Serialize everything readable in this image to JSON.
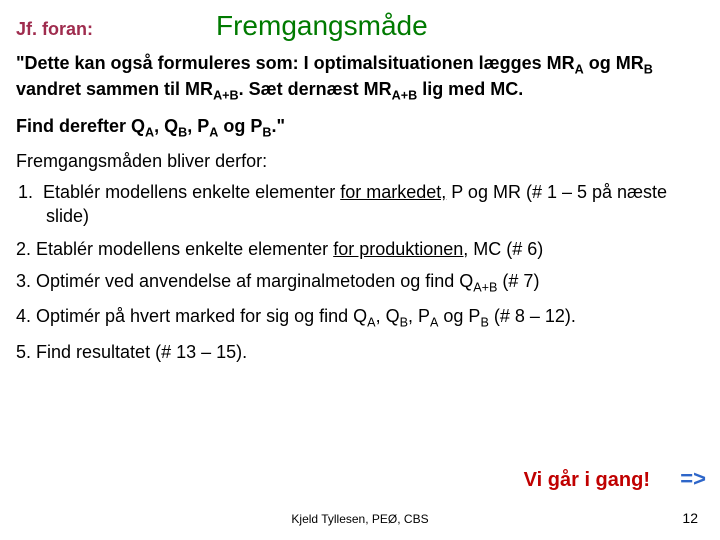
{
  "header": {
    "jf": "Jf. foran:",
    "title": "Fremgangsmåde"
  },
  "p1": {
    "pre": "\"Dette kan også formuleres som: I optimalsituationen lægges MR",
    "subA": "A",
    "mid1": " og MR",
    "subB": "B",
    "mid2": " vandret sammen til MR",
    "subAB1": "A+B",
    "mid3": ". Sæt dernæst MR",
    "subAB2": "A+B",
    "mid4": " lig med MC."
  },
  "p2": {
    "pre": "Find derefter Q",
    "sA": "A",
    "c1": ", Q",
    "sB": "B",
    "c2": ", P",
    "sA2": "A",
    "c3": " og P",
    "sB2": "B",
    "c4": ".\""
  },
  "p3": "Fremgangsmåden bliver derfor:",
  "li1": {
    "num": "1.",
    "a": " Etablér modellens enkelte elementer ",
    "u": "for markedet,",
    "b": " P og MR (# 1 – 5 på næste slide)"
  },
  "li2": {
    "a": "2. Etablér modellens enkelte elementer ",
    "u": "for produktionen,",
    "b": " MC (# 6)"
  },
  "li3": {
    "a": "3. Optimér ved anvendelse af marginalmetoden og find Q",
    "sub": "A+B",
    "b": " (# 7)"
  },
  "li4": {
    "a": "4. Optimér på hvert marked for sig og find Q",
    "sA": "A",
    "c1": ", Q",
    "sB": "B",
    "c2": ", P",
    "sA2": "A",
    "c3": " og P",
    "sB2": "B",
    "c4": " (# 8 – 12)."
  },
  "li5": "5. Find resultatet (# 13 – 15).",
  "go": "Vi går i gang!",
  "arrow": "=>",
  "footer": "Kjeld Tyllesen, PEØ, CBS",
  "page": "12",
  "colors": {
    "jf": "#9f2c4e",
    "title": "#007a00",
    "go": "#c00000",
    "arrow": "#2e66c9",
    "bg": "#ffffff",
    "text": "#000000"
  }
}
